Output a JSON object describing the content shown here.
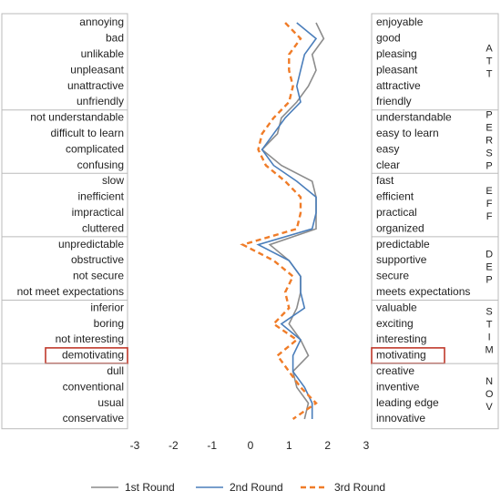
{
  "chart_data": {
    "type": "profile",
    "groups": [
      {
        "name": "ATT",
        "left": [
          "annoying",
          "bad",
          "unlikable",
          "unpleasant",
          "unattractive",
          "unfriendly"
        ],
        "right": [
          "enjoyable",
          "good",
          "pleasing",
          "pleasant",
          "attractive",
          "friendly"
        ]
      },
      {
        "name": "PERSP",
        "left": [
          "not understandable",
          "difficult to learn",
          "complicated",
          "confusing"
        ],
        "right": [
          "understandable",
          "easy to learn",
          "easy",
          "clear"
        ]
      },
      {
        "name": "EFF",
        "left": [
          "slow",
          "inefficient",
          "impractical",
          "cluttered"
        ],
        "right": [
          "fast",
          "efficient",
          "practical",
          "organized"
        ]
      },
      {
        "name": "DEP",
        "left": [
          "unpredictable",
          "obstructive",
          "not secure",
          "not meet expectations"
        ],
        "right": [
          "predictable",
          "supportive",
          "secure",
          "meets expectations"
        ]
      },
      {
        "name": "STIM",
        "left": [
          "inferior",
          "boring",
          "not interesting",
          "demotivating"
        ],
        "right": [
          "valuable",
          "exciting",
          "interesting",
          "motivating"
        ]
      },
      {
        "name": "NOV",
        "left": [
          "dull",
          "conventional",
          "usual",
          "conservative"
        ],
        "right": [
          "creative",
          "inventive",
          "leading edge",
          "innovative"
        ]
      }
    ],
    "series": [
      {
        "name": "1st Round",
        "color": "#8c8c8c",
        "dashed": false,
        "values": [
          1.7,
          1.9,
          1.6,
          1.7,
          1.5,
          1.2,
          0.8,
          0.7,
          0.3,
          0.8,
          1.6,
          1.7,
          1.7,
          1.7,
          0.5,
          1.0,
          1.3,
          1.3,
          1.2,
          1.0,
          1.3,
          1.5,
          1.1,
          1.2,
          1.5,
          1.4
        ]
      },
      {
        "name": "2nd Round",
        "color": "#4a7ebb",
        "dashed": false,
        "values": [
          1.2,
          1.7,
          1.4,
          1.3,
          1.2,
          1.3,
          0.9,
          0.6,
          0.3,
          0.6,
          1.2,
          1.7,
          1.7,
          1.6,
          0.2,
          1.0,
          1.3,
          1.3,
          1.4,
          0.8,
          1.3,
          1.1,
          1.1,
          1.4,
          1.6,
          1.6
        ]
      },
      {
        "name": "3rd Round",
        "color": "#f07c28",
        "dashed": true,
        "values": [
          0.9,
          1.3,
          1.0,
          1.0,
          1.1,
          1.0,
          0.6,
          0.3,
          0.2,
          0.4,
          0.9,
          1.3,
          1.3,
          1.2,
          -0.2,
          0.6,
          1.1,
          0.9,
          1.0,
          0.6,
          1.2,
          0.7,
          1.0,
          1.3,
          1.7,
          1.1
        ]
      }
    ],
    "highlight": [
      21
    ],
    "highlight_color": "#c0392b",
    "xlim": [
      -3,
      3
    ],
    "xticks": [
      -3,
      -2,
      -1,
      0,
      1,
      2,
      3
    ]
  }
}
